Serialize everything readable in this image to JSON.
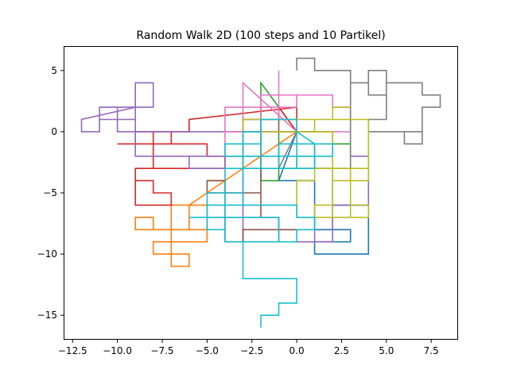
{
  "chart_data": {
    "type": "line",
    "title": "Random Walk 2D (100 steps and 10 Partikel)",
    "xlabel": "",
    "ylabel": "",
    "xlim": [
      -13.0,
      9.0
    ],
    "ylim": [
      -17.0,
      7.0
    ],
    "xticks": [
      -12.5,
      -10.0,
      -7.5,
      -5.0,
      -2.5,
      0.0,
      2.5,
      5.0,
      7.5
    ],
    "xtick_labels": [
      "−12.5",
      "−10.0",
      "−7.5",
      "−5.0",
      "−2.5",
      "0.0",
      "2.5",
      "5.0",
      "7.5"
    ],
    "yticks": [
      5,
      0,
      -5,
      -10,
      -15
    ],
    "ytick_labels": [
      "5",
      "0",
      "−5",
      "−10",
      "−15"
    ],
    "grid": false,
    "legend": "none",
    "series": [
      {
        "color": "#1f77b4",
        "x": [
          0,
          -1,
          1,
          1,
          2,
          2,
          4,
          4,
          1,
          1,
          3,
          3,
          2,
          2,
          1,
          1
        ],
        "y": [
          0,
          -4,
          -4,
          -8,
          -8,
          -6,
          -6,
          -10,
          -10,
          -9,
          -9,
          -8,
          -8,
          -3,
          -3,
          -1
        ]
      },
      {
        "color": "#ff7f0e",
        "x": [
          0,
          -6,
          -6,
          -8,
          -8,
          -9,
          -9,
          -5,
          -5,
          -7,
          -7,
          -6,
          -6,
          -8,
          -8,
          -5,
          -5,
          -4,
          -4,
          -5
        ],
        "y": [
          0,
          -6,
          -8,
          -8,
          -7,
          -7,
          -8,
          -8,
          -6,
          -6,
          -11,
          -11,
          -10,
          -10,
          -9,
          -9,
          -7,
          -7,
          -4,
          -4
        ]
      },
      {
        "color": "#2ca02c",
        "x": [
          0,
          -2,
          -2,
          -1,
          -1,
          2,
          2,
          3,
          3
        ],
        "y": [
          0,
          4,
          -4,
          -4,
          0,
          0,
          -1,
          -1,
          -2
        ]
      },
      {
        "color": "#d62728",
        "x": [
          0,
          -1,
          -1,
          0,
          0,
          -6,
          -6,
          -8,
          -8,
          -10,
          -9,
          -9,
          -7,
          -7,
          -8,
          -8,
          -4,
          -4,
          -5,
          -5,
          -8,
          -8,
          -9,
          -9,
          -9,
          -8,
          -8,
          -7,
          -7,
          -9,
          -9
        ],
        "y": [
          0,
          2,
          1,
          1,
          2,
          1,
          0,
          0,
          -1,
          -1,
          -1,
          0,
          0,
          -1,
          -1,
          -3,
          -3,
          -2,
          -2,
          -1,
          -1,
          -3,
          -3,
          -5,
          -4,
          -4,
          -5,
          -5,
          -6,
          -6,
          -5
        ]
      },
      {
        "color": "#9467bd",
        "x": [
          0,
          -10,
          -10,
          -9,
          -9,
          -12,
          -12,
          -11,
          -11,
          -9,
          -9,
          -8,
          -8,
          -9,
          -9,
          -11,
          -11,
          -10,
          -10,
          -9,
          -9,
          -4,
          -4,
          -6,
          -6,
          -3,
          -3,
          -1,
          -1,
          1,
          1,
          0,
          0,
          2,
          2,
          4,
          4,
          3
        ],
        "y": [
          0,
          0,
          1,
          1,
          2,
          1,
          0,
          0,
          2,
          2,
          4,
          4,
          2,
          2,
          1,
          1,
          2,
          2,
          1,
          1,
          -2,
          -2,
          -3,
          -3,
          -2,
          -2,
          -9,
          -9,
          -8,
          -8,
          -9,
          -9,
          -9,
          -9,
          -6,
          -6,
          -2,
          -2
        ]
      },
      {
        "color": "#8c564b",
        "x": [
          0,
          -1,
          -1,
          -3,
          -3,
          -2,
          -2,
          -4,
          -4,
          -5,
          -5,
          -2,
          -2,
          -1,
          -1,
          0,
          0,
          -3,
          -3,
          -4,
          -4,
          -2,
          -2,
          -3,
          -3
        ],
        "y": [
          0,
          0,
          1,
          1,
          -2,
          -2,
          -5,
          -5,
          -4,
          -4,
          -5,
          -5,
          -7,
          -7,
          -8,
          -8,
          -8,
          -8,
          -9,
          -9,
          -7,
          -7,
          0,
          0,
          1
        ]
      },
      {
        "color": "#e377c2",
        "x": [
          0,
          -3,
          -3,
          -4,
          -4,
          -3,
          -3,
          -2,
          -2,
          0,
          0,
          -2,
          -2,
          2,
          2,
          3,
          3,
          -4,
          -4,
          -2,
          -2,
          0,
          0,
          -1,
          -1
        ],
        "y": [
          0,
          4,
          -2,
          -2,
          0,
          0,
          1,
          1,
          3,
          3,
          2,
          2,
          3,
          3,
          2,
          2,
          0,
          0,
          2,
          2,
          0,
          0,
          1,
          1,
          5
        ]
      },
      {
        "color": "#7f7f7f",
        "x": [
          0,
          -1,
          -1,
          0,
          0,
          1,
          1,
          3,
          3,
          4,
          4,
          5,
          5,
          4,
          4,
          7,
          7,
          6,
          6,
          7,
          7,
          8,
          8,
          7,
          7,
          5,
          5,
          4,
          4,
          3,
          3,
          1,
          1,
          0,
          0,
          0
        ],
        "y": [
          0,
          -3,
          -3,
          -3,
          -3,
          -3,
          -3,
          -3,
          4,
          4,
          5,
          5,
          1,
          1,
          0,
          0,
          -1,
          -1,
          0,
          0,
          2,
          2,
          3,
          3,
          4,
          4,
          3,
          3,
          4,
          4,
          5,
          5,
          6,
          6,
          5,
          5
        ]
      },
      {
        "color": "#bcbd22",
        "x": [
          0,
          2,
          2,
          1,
          1,
          2,
          2,
          3,
          3,
          1,
          1,
          0,
          0,
          3,
          3,
          4,
          4,
          3,
          3,
          4,
          4,
          0,
          0,
          1,
          1,
          2,
          2,
          4,
          4,
          -3,
          -3,
          -2,
          -2,
          1,
          1,
          2,
          2,
          3
        ],
        "y": [
          0,
          0,
          -7,
          -7,
          -6,
          -6,
          -4,
          -4,
          -3,
          -3,
          -4,
          -4,
          -7,
          -7,
          -6,
          -6,
          -7,
          -7,
          -4,
          -4,
          -3,
          -3,
          -2,
          -2,
          -1,
          -1,
          -3,
          -3,
          1,
          1,
          -3,
          -3,
          0,
          0,
          1,
          1,
          2,
          2
        ]
      },
      {
        "color": "#17becf",
        "x": [
          0,
          1,
          1,
          2,
          2,
          0,
          0,
          1,
          1,
          -1,
          -1,
          0,
          0,
          -4,
          -4,
          -5,
          -5,
          -3,
          -3,
          -4,
          -4,
          -3,
          -3,
          -2,
          -2,
          -3,
          -3,
          -2,
          -2,
          0,
          0,
          -1,
          -1,
          -2,
          -2,
          -3,
          -3,
          -5,
          -5,
          -6,
          -6,
          -1,
          -1,
          -4,
          -4,
          0,
          0,
          1,
          1,
          0,
          0,
          -3,
          -3,
          0,
          0,
          -1,
          -1,
          -2,
          -2
        ],
        "y": [
          0,
          -1,
          -2,
          -2,
          -1,
          -1,
          -2,
          -2,
          -3,
          -3,
          -2,
          -2,
          -3,
          -3,
          -8,
          -8,
          -6,
          -6,
          -2,
          -2,
          -1,
          -1,
          -2,
          -2,
          -3,
          -3,
          -1,
          -1,
          1,
          1,
          -1,
          -1,
          -2,
          -2,
          0,
          0,
          -5,
          -5,
          -7,
          -7,
          -7,
          -7,
          -9,
          -9,
          -6,
          -6,
          -7,
          -7,
          -8,
          -8,
          -9,
          -9,
          -12,
          -12,
          -14,
          -14,
          -15,
          -15,
          -16
        ]
      }
    ]
  }
}
